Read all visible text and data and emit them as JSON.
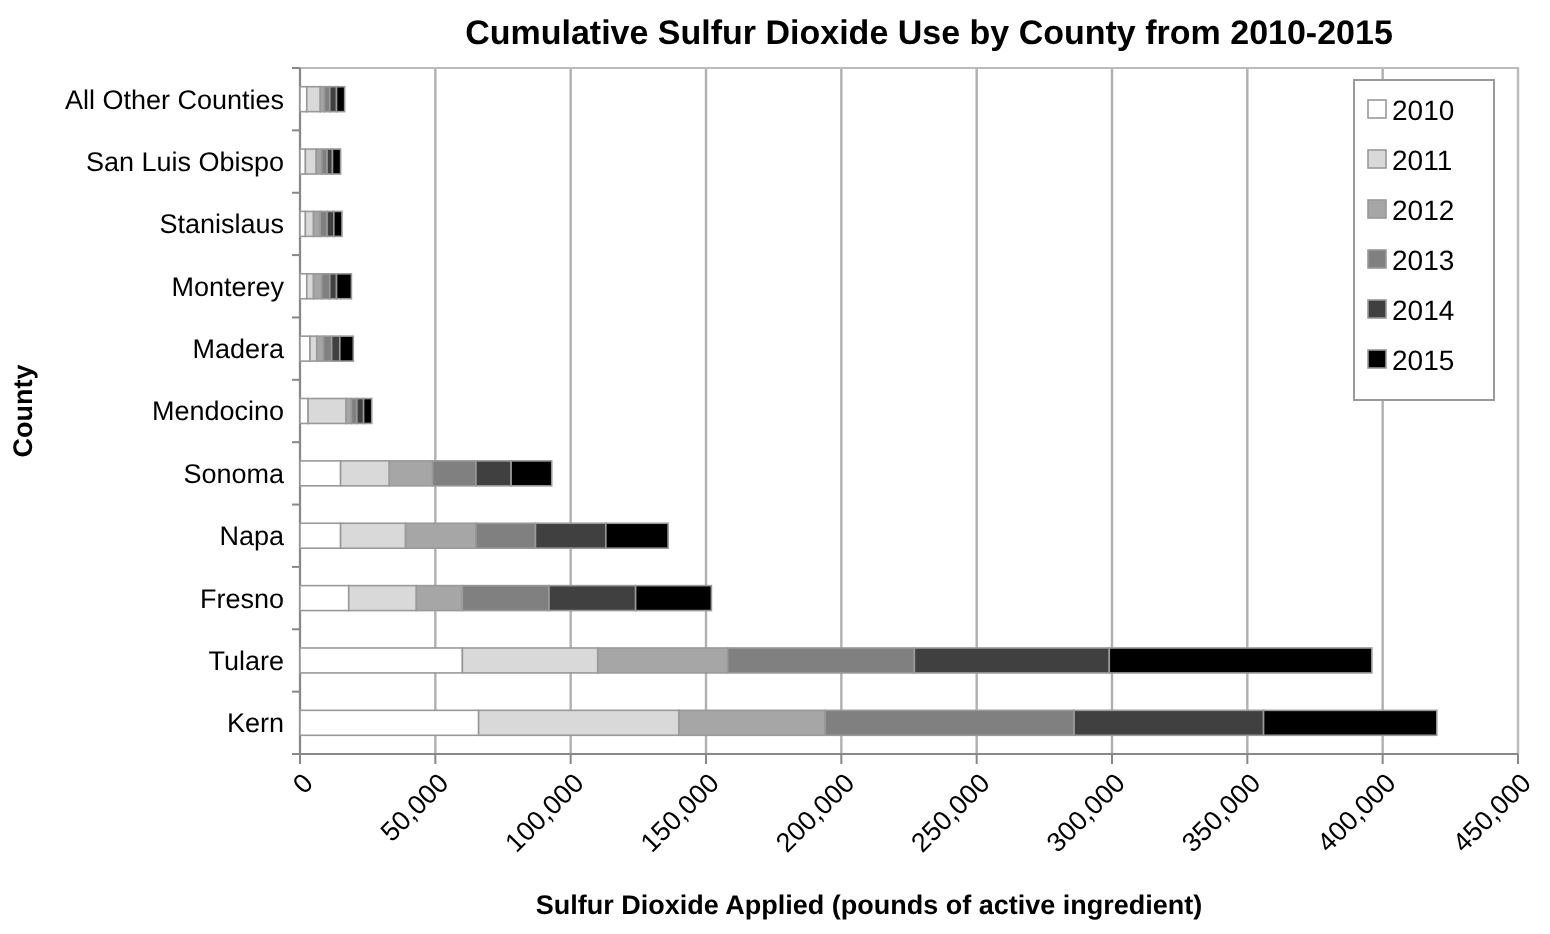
{
  "chart_data": {
    "type": "bar",
    "orientation": "horizontal",
    "stacked": true,
    "title": "Cumulative Sulfur Dioxide Use by County from 2010-2015",
    "xlabel": "Sulfur Dioxide Applied (pounds of active ingredient)",
    "ylabel": "County",
    "categories": [
      "All Other Counties",
      "San Luis Obispo",
      "Stanislaus",
      "Monterey",
      "Madera",
      "Mendocino",
      "Sonoma",
      "Napa",
      "Fresno",
      "Tulare",
      "Kern"
    ],
    "series": [
      {
        "name": "2010",
        "color": "#ffffff",
        "values": [
          2500,
          2000,
          2000,
          2500,
          3700,
          3000,
          15000,
          15000,
          18000,
          60000,
          66000
        ]
      },
      {
        "name": "2011",
        "color": "#d9d9d9",
        "values": [
          5000,
          4000,
          3000,
          2500,
          2500,
          14000,
          18000,
          24000,
          25000,
          50000,
          74000
        ]
      },
      {
        "name": "2012",
        "color": "#a6a6a6",
        "values": [
          1500,
          2000,
          2500,
          3000,
          2500,
          2000,
          16000,
          26000,
          17000,
          48000,
          54000
        ]
      },
      {
        "name": "2013",
        "color": "#808080",
        "values": [
          2000,
          2000,
          2500,
          3000,
          3000,
          2000,
          16000,
          22000,
          32000,
          69000,
          92000
        ]
      },
      {
        "name": "2014",
        "color": "#404040",
        "values": [
          2500,
          2000,
          2500,
          2500,
          3000,
          2500,
          13000,
          26000,
          32000,
          72000,
          70000
        ]
      },
      {
        "name": "2015",
        "color": "#000000",
        "values": [
          3000,
          3000,
          3000,
          5500,
          5000,
          3000,
          15000,
          23000,
          28000,
          97000,
          64000
        ]
      }
    ],
    "xlim": [
      0,
      450000
    ],
    "xticks": [
      {
        "value": 0,
        "label": "0"
      },
      {
        "value": 50000,
        "label": "50,000"
      },
      {
        "value": 100000,
        "label": "100,000"
      },
      {
        "value": 150000,
        "label": "150,000"
      },
      {
        "value": 200000,
        "label": "200,000"
      },
      {
        "value": 250000,
        "label": "250,000"
      },
      {
        "value": 300000,
        "label": "300,000"
      },
      {
        "value": 350000,
        "label": "350,000"
      },
      {
        "value": 400000,
        "label": "400,000"
      },
      {
        "value": 450000,
        "label": "450,000"
      }
    ],
    "grid": "x",
    "legend": "top right"
  }
}
